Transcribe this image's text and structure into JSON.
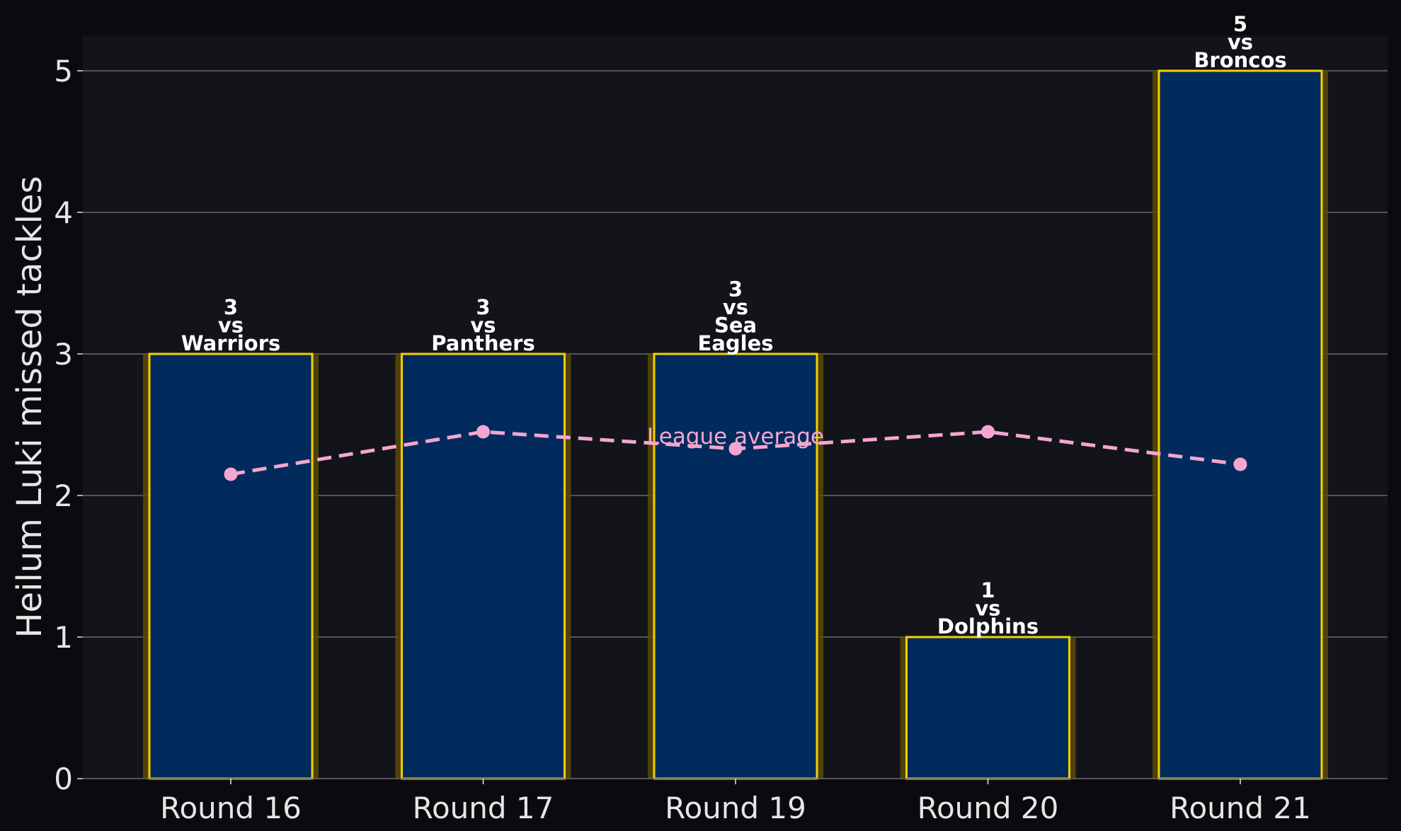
{
  "colors": {
    "page_background": "#0b0b0f",
    "plot_background": "#13131a",
    "bar_fill": "#002b5c",
    "bar_edge": "#f5d000",
    "bar_glow": "#5a4a06",
    "grid": "#6b6b6b",
    "league_average": "#f4a6d0",
    "text": "#e6e6e6",
    "annotation_text": "#ffffff"
  },
  "chart_data": {
    "type": "bar",
    "title": "",
    "xlabel": "",
    "ylabel": "Heilum Luki missed tackles",
    "ylim": [
      0,
      5.25
    ],
    "yticks": [
      0,
      1,
      2,
      3,
      4,
      5
    ],
    "grid": "horizontal",
    "categories": [
      "Round 16",
      "Round 17",
      "Round 19",
      "Round 20",
      "Round 21"
    ],
    "series": [
      {
        "name": "",
        "values": [
          3,
          3,
          3,
          1,
          5
        ],
        "annotations": [
          [
            "3",
            "vs",
            "Warriors"
          ],
          [
            "3",
            "vs",
            "Panthers"
          ],
          [
            "3",
            "vs",
            "Sea",
            "Eagles"
          ],
          [
            "1",
            "vs",
            "Dolphins"
          ],
          [
            "5",
            "vs",
            "Broncos"
          ]
        ]
      },
      {
        "name": "League average",
        "style": "dashed-line-with-markers",
        "values": [
          2.15,
          2.45,
          2.33,
          2.45,
          2.22
        ]
      }
    ]
  }
}
